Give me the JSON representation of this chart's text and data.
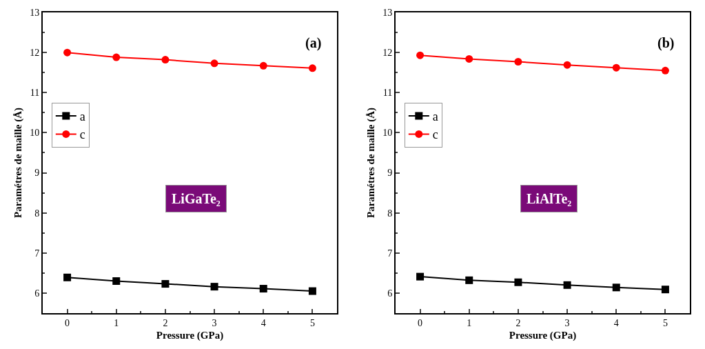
{
  "chart_data": [
    {
      "type": "line",
      "xlabel": "Pressure (GPa)",
      "ylabel": "Paramétres de maille (Å)",
      "x": [
        0,
        1,
        2,
        3,
        4,
        5
      ],
      "series": [
        {
          "name": "a",
          "color": "#000000",
          "marker": "square",
          "values": [
            6.39,
            6.3,
            6.23,
            6.16,
            6.11,
            6.05
          ]
        },
        {
          "name": "c",
          "color": "#ff0000",
          "marker": "circle",
          "values": [
            12.0,
            11.88,
            11.82,
            11.73,
            11.67,
            11.61
          ]
        }
      ],
      "xlim": [
        -0.5,
        5.5
      ],
      "xticks": [
        0,
        1,
        2,
        3,
        4,
        5
      ],
      "ylim": [
        5.5,
        13
      ],
      "yticks": [
        6,
        7,
        8,
        9,
        10,
        11,
        12,
        13
      ],
      "grid": false,
      "legend": "top left",
      "line_style": "solid",
      "annotations": [
        "(a)",
        "LiGaTe₂"
      ]
    },
    {
      "type": "line",
      "xlabel": "Pressure (GPa)",
      "ylabel": "Paramétres de maille (Å)",
      "x": [
        0,
        1,
        2,
        3,
        4,
        5
      ],
      "series": [
        {
          "name": "a",
          "color": "#000000",
          "marker": "square",
          "values": [
            6.41,
            6.32,
            6.27,
            6.2,
            6.14,
            6.09
          ]
        },
        {
          "name": "c",
          "color": "#ff0000",
          "marker": "circle",
          "values": [
            11.93,
            11.84,
            11.77,
            11.69,
            11.62,
            11.55
          ]
        }
      ],
      "xlim": [
        -0.5,
        5.5
      ],
      "xticks": [
        0,
        1,
        2,
        3,
        4,
        5
      ],
      "ylim": [
        5.5,
        13
      ],
      "yticks": [
        6,
        7,
        8,
        9,
        10,
        11,
        12,
        13
      ],
      "grid": false,
      "legend": "top left",
      "line_style": "solid",
      "annotations": [
        "(b)",
        "LiAlTe₂"
      ]
    }
  ]
}
